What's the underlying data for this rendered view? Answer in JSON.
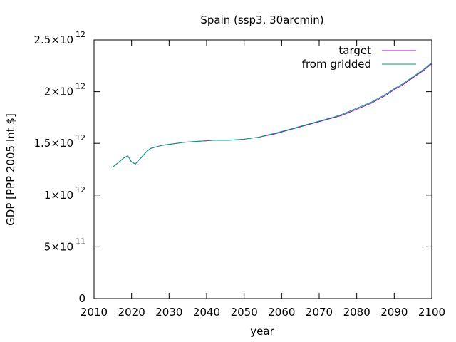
{
  "chart_data": {
    "type": "line",
    "title": "Spain (ssp3, 30arcmin)",
    "xlabel": "year",
    "ylabel": "GDP [PPP 2005 Int $]",
    "xlim": [
      2010,
      2100
    ],
    "ylim": [
      0,
      2500000000000.0
    ],
    "x_ticks": [
      2010,
      2020,
      2030,
      2040,
      2050,
      2060,
      2070,
      2080,
      2090,
      2100
    ],
    "y_ticks": [
      {
        "value": 0,
        "mant": "0",
        "exp": ""
      },
      {
        "value": 500000000000.0,
        "mant": "5×10",
        "exp": "11"
      },
      {
        "value": 1000000000000.0,
        "mant": "1×10",
        "exp": "12"
      },
      {
        "value": 1500000000000.0,
        "mant": "1.5×10",
        "exp": "12"
      },
      {
        "value": 2000000000000.0,
        "mant": "2×10",
        "exp": "12"
      },
      {
        "value": 2500000000000.0,
        "mant": "2.5×10",
        "exp": "12"
      }
    ],
    "grid": false,
    "legend_position": "top-right",
    "series": [
      {
        "name": "target",
        "color": "#9400d3",
        "x": [
          2015,
          2016,
          2017,
          2018,
          2019,
          2020,
          2021,
          2022,
          2023,
          2024,
          2025,
          2026,
          2027,
          2028,
          2029,
          2030,
          2032,
          2034,
          2036,
          2038,
          2040,
          2042,
          2044,
          2046,
          2048,
          2050,
          2052,
          2054,
          2056,
          2058,
          2060,
          2062,
          2064,
          2066,
          2068,
          2070,
          2072,
          2074,
          2076,
          2078,
          2080,
          2082,
          2084,
          2086,
          2088,
          2090,
          2092,
          2094,
          2096,
          2098,
          2100
        ],
        "values": [
          1270000000000.0,
          1300000000000.0,
          1330000000000.0,
          1360000000000.0,
          1380000000000.0,
          1320000000000.0,
          1300000000000.0,
          1340000000000.0,
          1380000000000.0,
          1420000000000.0,
          1450000000000.0,
          1460000000000.0,
          1470000000000.0,
          1480000000000.0,
          1485000000000.0,
          1490000000000.0,
          1500000000000.0,
          1510000000000.0,
          1515000000000.0,
          1520000000000.0,
          1525000000000.0,
          1530000000000.0,
          1530000000000.0,
          1530000000000.0,
          1535000000000.0,
          1540000000000.0,
          1550000000000.0,
          1560000000000.0,
          1575000000000.0,
          1590000000000.0,
          1610000000000.0,
          1630000000000.0,
          1650000000000.0,
          1670000000000.0,
          1690000000000.0,
          1710000000000.0,
          1730000000000.0,
          1750000000000.0,
          1770000000000.0,
          1800000000000.0,
          1830000000000.0,
          1860000000000.0,
          1890000000000.0,
          1930000000000.0,
          1970000000000.0,
          2020000000000.0,
          2060000000000.0,
          2110000000000.0,
          2160000000000.0,
          2210000000000.0,
          2270000000000.0
        ]
      },
      {
        "name": "from gridded",
        "color": "#009e73",
        "x": [
          2015,
          2016,
          2017,
          2018,
          2019,
          2020,
          2021,
          2022,
          2023,
          2024,
          2025,
          2026,
          2027,
          2028,
          2029,
          2030,
          2032,
          2034,
          2036,
          2038,
          2040,
          2042,
          2044,
          2046,
          2048,
          2050,
          2052,
          2054,
          2056,
          2058,
          2060,
          2062,
          2064,
          2066,
          2068,
          2070,
          2072,
          2074,
          2076,
          2078,
          2080,
          2082,
          2084,
          2086,
          2088,
          2090,
          2092,
          2094,
          2096,
          2098,
          2100
        ],
        "values": [
          1270000000000.0,
          1300000000000.0,
          1330000000000.0,
          1360000000000.0,
          1380000000000.0,
          1320000000000.0,
          1300000000000.0,
          1340000000000.0,
          1380000000000.0,
          1420000000000.0,
          1450000000000.0,
          1460000000000.0,
          1470000000000.0,
          1480000000000.0,
          1485000000000.0,
          1490000000000.0,
          1500000000000.0,
          1510000000000.0,
          1515000000000.0,
          1520000000000.0,
          1525000000000.0,
          1530000000000.0,
          1530000000000.0,
          1530000000000.0,
          1535000000000.0,
          1540000000000.0,
          1550000000000.0,
          1560000000000.0,
          1580000000000.0,
          1595000000000.0,
          1615000000000.0,
          1635000000000.0,
          1655000000000.0,
          1675000000000.0,
          1695000000000.0,
          1715000000000.0,
          1735000000000.0,
          1755000000000.0,
          1780000000000.0,
          1810000000000.0,
          1840000000000.0,
          1870000000000.0,
          1900000000000.0,
          1940000000000.0,
          1980000000000.0,
          2030000000000.0,
          2070000000000.0,
          2120000000000.0,
          2170000000000.0,
          2220000000000.0,
          2280000000000.0
        ]
      }
    ]
  }
}
